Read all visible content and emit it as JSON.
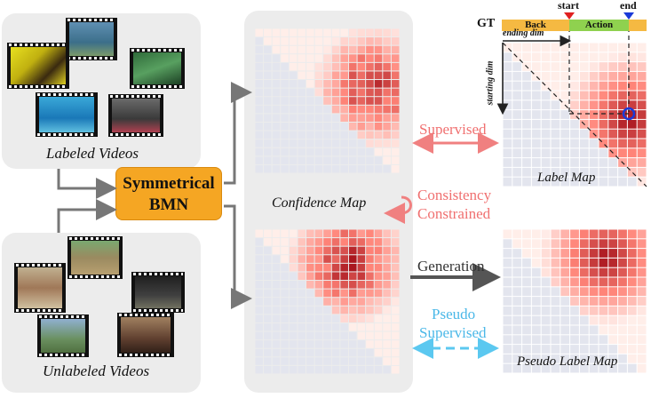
{
  "labels": {
    "labeled_videos": "Labeled Videos",
    "unlabeled_videos": "Unlabeled Videos",
    "model_line1": "Symmetrical",
    "model_line2": "BMN",
    "confidence_map": "Confidence Map",
    "supervised": "Supervised",
    "consistency_line1": "Consistency",
    "consistency_line2": "Constrained",
    "generation": "Generation",
    "pseudo_line1": "Pseudo",
    "pseudo_line2": "Supervised",
    "label_map": "Label Map",
    "pseudo_label_map": "Pseudo Label Map",
    "gt": "GT",
    "back": "Back",
    "action": "Action",
    "start": "start",
    "end": "end",
    "ending_dim": "ending dim",
    "starting_dim": "starting dim"
  },
  "colors": {
    "panel": "#ececec",
    "model_box": "#f5a623",
    "supervised_arrow": "#f08080",
    "pseudo_arrow": "#5bc8f0",
    "generation_arrow": "#555555",
    "gt_back": "#f5b942",
    "gt_action": "#8fd14f",
    "heat_red": "#c8101a",
    "empty_cell": "#e3e5ee"
  }
}
